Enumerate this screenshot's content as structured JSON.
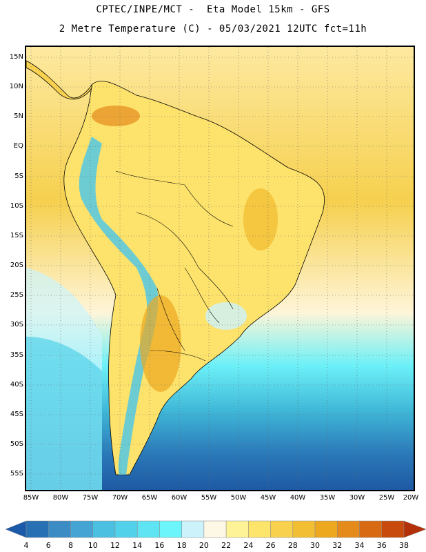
{
  "header": {
    "line1": "CPTEC/INPE/MCT -  Eta Model 15km - GFS",
    "line2": "2 Metre Temperature (C) - 05/03/2021 12UTC fct=11h"
  },
  "axes": {
    "lat_labels": [
      "15N",
      "10N",
      "5N",
      "EQ",
      "5S",
      "10S",
      "15S",
      "20S",
      "25S",
      "30S",
      "35S",
      "40S",
      "45S",
      "50S",
      "55S"
    ],
    "lon_labels": [
      "85W",
      "80W",
      "75W",
      "70W",
      "65W",
      "60W",
      "55W",
      "50W",
      "45W",
      "40W",
      "35W",
      "30W",
      "25W",
      "20W"
    ]
  },
  "colorbar": {
    "ticks": [
      "4",
      "6",
      "8",
      "10",
      "12",
      "14",
      "16",
      "18",
      "20",
      "22",
      "24",
      "26",
      "28",
      "30",
      "32",
      "34",
      "36",
      "38"
    ],
    "colors": [
      "#1a5aa8",
      "#2870b4",
      "#3b8cc4",
      "#45a4d4",
      "#4cc0e0",
      "#52d2ea",
      "#5ee4f2",
      "#6cf5fa",
      "#ccf3fb",
      "#fdf7e6",
      "#fef396",
      "#fde46a",
      "#f8d24e",
      "#f2bf34",
      "#eda820",
      "#e48b1c",
      "#d86a14",
      "#c84a0c",
      "#b43008"
    ]
  }
}
